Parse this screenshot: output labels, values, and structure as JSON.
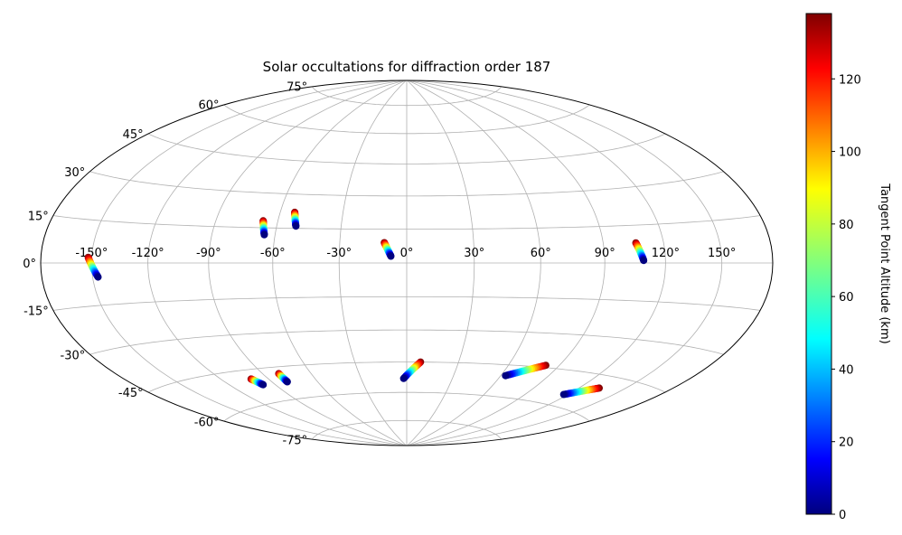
{
  "chart_data": {
    "type": "scatter",
    "projection": "hammer",
    "title": "Solar occultations for diffraction order 187",
    "x_ticks": [
      "-150°",
      "-120°",
      "-90°",
      "-60°",
      "-30°",
      "0°",
      "30°",
      "60°",
      "90°",
      "120°",
      "150°"
    ],
    "y_ticks": [
      "75°",
      "60°",
      "45°",
      "30°",
      "15°",
      "0°",
      "-15°",
      "-30°",
      "-45°",
      "-60°",
      "-75°"
    ],
    "x_tick_values": [
      -150,
      -120,
      -90,
      -60,
      -30,
      0,
      30,
      60,
      90,
      120,
      150
    ],
    "y_tick_values": [
      75,
      60,
      45,
      30,
      15,
      0,
      -15,
      -30,
      -45,
      -60,
      -75
    ],
    "grid": true,
    "colormap": "jet",
    "colorbar": {
      "label": "Tangent Point Altitude (km)",
      "min": 0,
      "max": 138,
      "ticks": [
        "0",
        "20",
        "40",
        "60",
        "80",
        "100",
        "120"
      ],
      "tick_values": [
        0,
        20,
        40,
        60,
        80,
        100,
        120
      ]
    },
    "tracks": [
      {
        "lon_top": -152,
        "lat_top": 2,
        "lon_bottom": -147,
        "lat_bottom": -5,
        "alt_top": 138,
        "alt_bottom": 0
      },
      {
        "lon_top": -67,
        "lat_top": 18,
        "lon_bottom": -65,
        "lat_bottom": 12,
        "alt_top": 138,
        "alt_bottom": 0
      },
      {
        "lon_top": -53,
        "lat_top": 22,
        "lon_bottom": -51,
        "lat_bottom": 16,
        "alt_top": 138,
        "alt_bottom": 0
      },
      {
        "lon_top": -10,
        "lat_top": 9,
        "lon_bottom": -7,
        "lat_bottom": 3,
        "alt_top": 138,
        "alt_bottom": 0
      },
      {
        "lon_top": 106,
        "lat_top": 8,
        "lon_bottom": 109,
        "lat_bottom": 1,
        "alt_top": 138,
        "alt_bottom": 0
      },
      {
        "lon_top": -101,
        "lat_top": -49,
        "lon_bottom": -98,
        "lat_bottom": -52,
        "alt_top": 138,
        "alt_bottom": 0
      },
      {
        "lon_top": -80,
        "lat_top": -48,
        "lon_bottom": -80,
        "lat_bottom": -52,
        "alt_top": 138,
        "alt_bottom": 0
      },
      {
        "lon_top": 8,
        "lat_top": -45,
        "lon_bottom": -2,
        "lat_bottom": -53,
        "alt_top": 138,
        "alt_bottom": 0
      },
      {
        "lon_top": 82,
        "lat_top": -44,
        "lon_bottom": 63,
        "lat_bottom": -50,
        "alt_top": 138,
        "alt_bottom": 0
      },
      {
        "lon_top": 133,
        "lat_top": -50,
        "lon_bottom": 117,
        "lat_bottom": -55,
        "alt_top": 138,
        "alt_bottom": 0
      }
    ]
  }
}
